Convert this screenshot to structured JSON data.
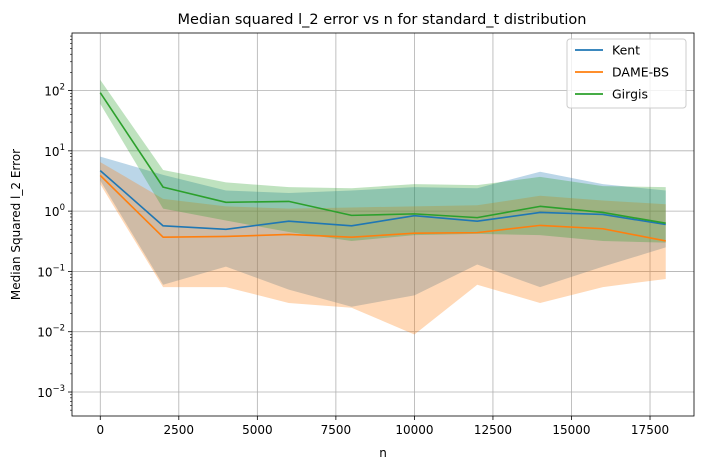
{
  "chart_data": {
    "type": "line",
    "title": "Median squared l_2 error vs n for standard_t distribution",
    "xlabel": "n",
    "ylabel": "Median Squared l_2 Error",
    "xlim": [
      -900,
      18900
    ],
    "ylim": [
      0.0004,
      900
    ],
    "yscale": "log",
    "grid": true,
    "legend_position": "top-right",
    "x": [
      0,
      2000,
      4000,
      6000,
      8000,
      10000,
      12000,
      14000,
      16000,
      18000
    ],
    "x_ticks": [
      0,
      2500,
      5000,
      7500,
      10000,
      12500,
      15000,
      17500
    ],
    "x_tick_labels": [
      "0",
      "2500",
      "5000",
      "7500",
      "10000",
      "12500",
      "15000",
      "17500"
    ],
    "y_ticks": [
      0.001,
      0.01,
      0.1,
      1,
      10,
      100
    ],
    "y_tick_labels": [
      {
        "base": "10",
        "exp": "−3"
      },
      {
        "base": "10",
        "exp": "−2"
      },
      {
        "base": "10",
        "exp": "−1"
      },
      {
        "base": "10",
        "exp": "0"
      },
      {
        "base": "10",
        "exp": "1"
      },
      {
        "base": "10",
        "exp": "2"
      }
    ],
    "series": [
      {
        "name": "Kent",
        "color": "#1f77b4",
        "values": [
          4.7,
          0.57,
          0.5,
          0.68,
          0.57,
          0.84,
          0.68,
          0.95,
          0.88,
          0.6
        ],
        "lower": [
          3.2,
          0.06,
          0.12,
          0.05,
          0.026,
          0.04,
          0.13,
          0.055,
          0.12,
          0.25
        ],
        "upper": [
          8.0,
          4.0,
          2.2,
          2.0,
          2.2,
          2.5,
          2.4,
          4.5,
          2.8,
          2.2
        ]
      },
      {
        "name": "DAME-BS",
        "color": "#ff7f0e",
        "values": [
          3.9,
          0.37,
          0.38,
          0.41,
          0.37,
          0.43,
          0.44,
          0.58,
          0.51,
          0.32
        ],
        "lower": [
          2.8,
          0.055,
          0.055,
          0.03,
          0.025,
          0.009,
          0.06,
          0.03,
          0.055,
          0.075
        ],
        "upper": [
          6.5,
          1.6,
          1.2,
          1.1,
          1.15,
          1.2,
          1.25,
          1.8,
          1.5,
          1.3
        ]
      },
      {
        "name": "Girgis",
        "color": "#2ca02c",
        "values": [
          92,
          2.5,
          1.4,
          1.45,
          0.85,
          0.9,
          0.78,
          1.2,
          0.95,
          0.63
        ],
        "lower": [
          60,
          1.1,
          0.7,
          0.45,
          0.32,
          0.4,
          0.42,
          0.4,
          0.32,
          0.3
        ],
        "upper": [
          150,
          4.8,
          3.0,
          2.5,
          2.4,
          2.8,
          2.7,
          3.7,
          2.6,
          2.5
        ]
      }
    ]
  }
}
